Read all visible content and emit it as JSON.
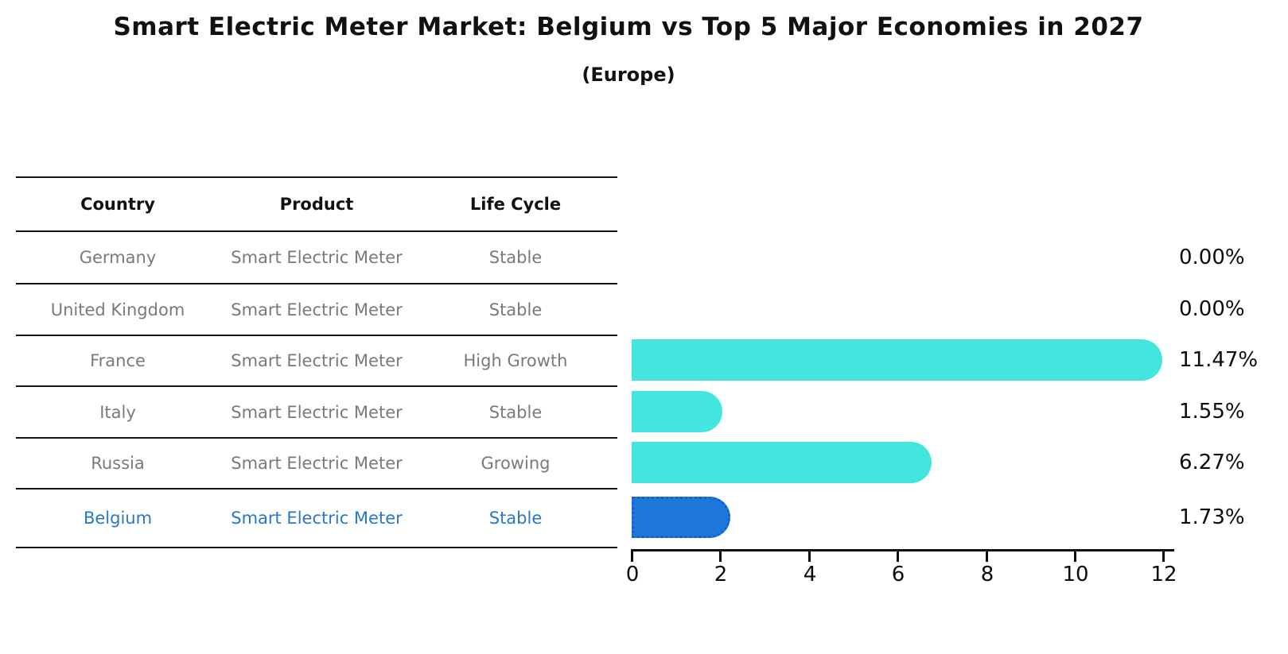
{
  "title": "Smart Electric Meter Market: Belgium vs Top 5 Major Economies in 2027",
  "subtitle": "(Europe)",
  "table": {
    "headers": [
      "Country",
      "Product",
      "Life Cycle"
    ],
    "rows": [
      {
        "country": "Germany",
        "product": "Smart Electric Meter",
        "life_cycle": "Stable",
        "highlighted": false
      },
      {
        "country": "United Kingdom",
        "product": "Smart Electric Meter",
        "life_cycle": "Stable",
        "highlighted": false
      },
      {
        "country": "France",
        "product": "Smart Electric Meter",
        "life_cycle": "High Growth",
        "highlighted": false
      },
      {
        "country": "Italy",
        "product": "Smart Electric Meter",
        "life_cycle": "Stable",
        "highlighted": false
      },
      {
        "country": "Russia",
        "product": "Smart Electric Meter",
        "life_cycle": "Growing",
        "highlighted": false
      },
      {
        "country": "Belgium",
        "product": "Smart Electric Meter",
        "life_cycle": "Stable",
        "highlighted": true
      }
    ]
  },
  "chart_data": {
    "type": "bar",
    "orientation": "horizontal",
    "title": "Smart Electric Meter Market: Belgium vs Top 5 Major Economies in 2027 (Europe)",
    "categories": [
      "Germany",
      "United Kingdom",
      "France",
      "Italy",
      "Russia",
      "Belgium"
    ],
    "values": [
      0.0,
      0.0,
      11.47,
      1.55,
      6.27,
      1.73
    ],
    "value_labels": [
      "0.00%",
      "0.00%",
      "11.47%",
      "1.55%",
      "6.27%",
      "1.73%"
    ],
    "xlim": [
      0,
      12
    ],
    "xticks": [
      0,
      2,
      4,
      6,
      8,
      10,
      12
    ],
    "grid": false,
    "legend": false,
    "bar_color": "#42E6DE",
    "highlight_index": 5,
    "highlight_bar_color": "#1E78DB",
    "highlight_border_color": "#155FC8",
    "highlight_text_color": "#2878C8",
    "row_text_color": "#7A7A7A",
    "bar_cap_units": 0.5
  }
}
